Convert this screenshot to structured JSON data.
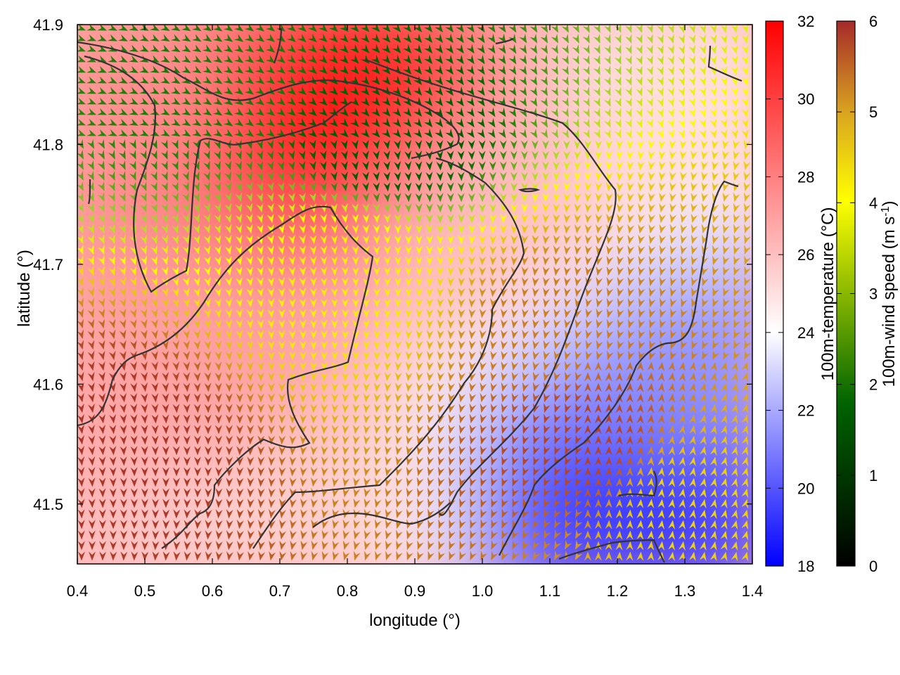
{
  "chart_data": {
    "type": "heatmap",
    "title": "",
    "xlabel": "longitude (°)",
    "ylabel": "latitude (°)",
    "xlim": [
      0.4,
      1.4
    ],
    "ylim": [
      41.45,
      41.9
    ],
    "x_ticks": [
      "0.4",
      "0.5",
      "0.6",
      "0.7",
      "0.8",
      "0.9",
      "1.0",
      "1.1",
      "1.2",
      "1.3",
      "1.4"
    ],
    "y_ticks": [
      "41.5",
      "41.6",
      "41.7",
      "41.8",
      "41.9"
    ],
    "grid": false,
    "temperature_colorbar": {
      "label": "100m-temperature (°C)",
      "range": [
        18,
        32
      ],
      "ticks": [
        "18",
        "20",
        "22",
        "24",
        "26",
        "28",
        "30",
        "32"
      ],
      "colors": [
        "#0000ff",
        "#ffffff",
        "#ff0000"
      ]
    },
    "windspeed_colorbar": {
      "label_main": "100m-wind speed (m s",
      "label_sup": "-1",
      "label_end": ")",
      "range": [
        0,
        6
      ],
      "ticks": [
        "0",
        "1",
        "2",
        "3",
        "4",
        "5",
        "6"
      ],
      "colors": [
        "#000000",
        "#006400",
        "#ffff00",
        "#daa520",
        "#a52a2a"
      ]
    },
    "temperature_field_regions": [
      {
        "lon": 0.45,
        "lat": 41.85,
        "temp": 28.5
      },
      {
        "lon": 0.82,
        "lat": 41.82,
        "temp": 31.5
      },
      {
        "lon": 0.6,
        "lat": 41.6,
        "temp": 28
      },
      {
        "lon": 0.7,
        "lat": 41.5,
        "temp": 26.5
      },
      {
        "lon": 1.0,
        "lat": 41.75,
        "temp": 27
      },
      {
        "lon": 1.25,
        "lat": 41.5,
        "temp": 19.5
      },
      {
        "lon": 1.3,
        "lat": 41.6,
        "temp": 22
      },
      {
        "lon": 1.3,
        "lat": 41.85,
        "temp": 26
      }
    ],
    "wind_field_regions": [
      {
        "lon": 0.6,
        "lat": 41.85,
        "speed": 2.2
      },
      {
        "lon": 0.85,
        "lat": 41.8,
        "speed": 1.8
      },
      {
        "lon": 0.45,
        "lat": 41.55,
        "speed": 5.9
      },
      {
        "lon": 0.8,
        "lat": 41.7,
        "speed": 4.2
      },
      {
        "lon": 1.1,
        "lat": 41.65,
        "speed": 5.3
      },
      {
        "lon": 1.3,
        "lat": 41.5,
        "speed": 4.5
      },
      {
        "lon": 1.15,
        "lat": 41.55,
        "speed": 5.8
      }
    ]
  }
}
